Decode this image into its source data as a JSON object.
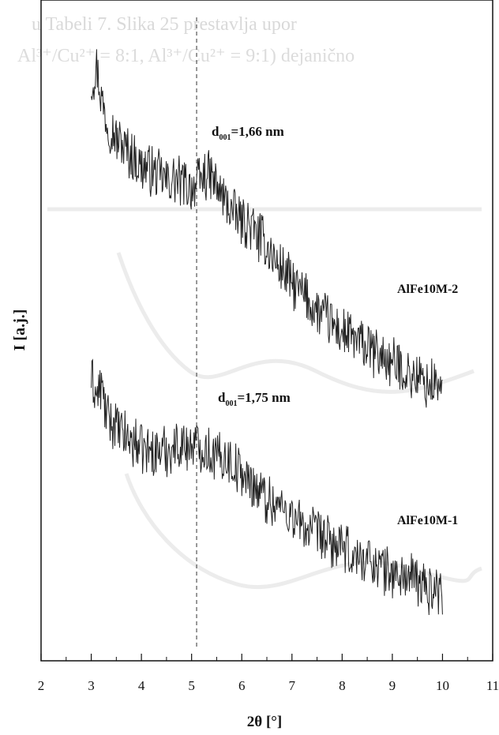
{
  "header_text": {
    "line1": "u Tabeli 7. Slika 25 prestavlja upor",
    "line2": "Al³⁺/Cu²⁺ = 8:1, Al³⁺/Cu²⁺ = 9:1) dejanično"
  },
  "chart_data": {
    "type": "line",
    "title": "",
    "xlabel": "2θ [°]",
    "ylabel": "I [a.j.]",
    "xlim": [
      2,
      11
    ],
    "x_ticks": [
      2,
      3,
      4,
      5,
      6,
      7,
      8,
      9,
      10,
      11
    ],
    "y_ticks": [],
    "grid": false,
    "legend": "none",
    "annotations": [
      {
        "text_main": "d",
        "text_sub": "001",
        "text_value": "=1,66 nm",
        "x": 5.3,
        "series": "AlFe10M-2"
      },
      {
        "text_main": "d",
        "text_sub": "001",
        "text_value": "=1,75 nm",
        "x": 5.5,
        "series": "AlFe10M-1"
      }
    ],
    "reference_line": {
      "x": 5.1,
      "style": "dashed"
    },
    "series": [
      {
        "name": "AlFe10M-2",
        "x": [
          3.0,
          3.1,
          3.2,
          3.3,
          3.5,
          3.7,
          3.9,
          4.1,
          4.3,
          4.5,
          4.7,
          4.9,
          5.1,
          5.3,
          5.5,
          5.7,
          5.9,
          6.1,
          6.3,
          6.5,
          6.7,
          6.9,
          7.1,
          7.3,
          7.5,
          7.7,
          7.9,
          8.1,
          8.3,
          8.5,
          8.7,
          8.9,
          9.1,
          9.3,
          9.5,
          9.7,
          9.9,
          10.0
        ],
        "y": [
          9.6,
          9.9,
          9.4,
          9.0,
          8.7,
          8.5,
          8.3,
          8.2,
          8.1,
          8.0,
          8.0,
          7.9,
          7.9,
          8.1,
          7.9,
          7.6,
          7.4,
          7.3,
          7.1,
          6.9,
          6.6,
          6.4,
          6.2,
          6.0,
          5.8,
          5.7,
          5.5,
          5.4,
          5.3,
          5.2,
          5.1,
          5.0,
          4.9,
          4.8,
          4.7,
          4.6,
          4.6,
          4.5
        ],
        "noise": 0.45
      },
      {
        "name": "AlFe10M-1",
        "x": [
          3.0,
          3.1,
          3.2,
          3.3,
          3.5,
          3.7,
          3.9,
          4.1,
          4.3,
          4.5,
          4.7,
          4.9,
          5.1,
          5.3,
          5.5,
          5.7,
          5.9,
          6.1,
          6.3,
          6.5,
          6.7,
          6.9,
          7.1,
          7.3,
          7.5,
          7.7,
          7.9,
          8.1,
          8.3,
          8.5,
          8.7,
          8.9,
          9.1,
          9.3,
          9.5,
          9.7,
          9.9,
          10.0
        ],
        "y": [
          4.7,
          4.4,
          4.6,
          4.1,
          3.9,
          3.7,
          3.6,
          3.5,
          3.5,
          3.5,
          3.6,
          3.6,
          3.6,
          3.5,
          3.4,
          3.4,
          3.2,
          3.0,
          2.9,
          2.7,
          2.6,
          2.5,
          2.3,
          2.2,
          2.1,
          2.0,
          1.9,
          1.8,
          1.7,
          1.7,
          1.6,
          1.5,
          1.4,
          1.4,
          1.3,
          1.2,
          1.2,
          1.2
        ],
        "noise": 0.45
      }
    ]
  }
}
